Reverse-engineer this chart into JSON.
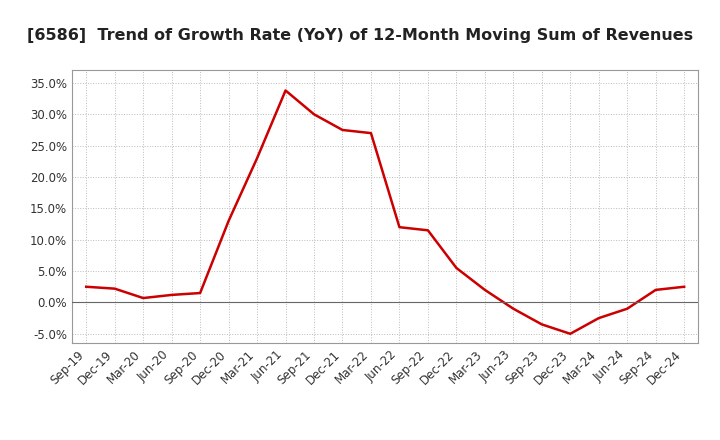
{
  "title": "[6586]  Trend of Growth Rate (YoY) of 12-Month Moving Sum of Revenues",
  "line_color": "#cc0000",
  "background_color": "#ffffff",
  "plot_bg_color": "#ffffff",
  "grid_color": "#bbbbbb",
  "ylim": [
    -0.065,
    0.37
  ],
  "yticks": [
    -0.05,
    0.0,
    0.05,
    0.1,
    0.15,
    0.2,
    0.25,
    0.3,
    0.35
  ],
  "labels": [
    "Sep-19",
    "Dec-19",
    "Mar-20",
    "Jun-20",
    "Sep-20",
    "Dec-20",
    "Mar-21",
    "Jun-21",
    "Sep-21",
    "Dec-21",
    "Mar-22",
    "Jun-22",
    "Sep-22",
    "Dec-22",
    "Mar-23",
    "Jun-23",
    "Sep-23",
    "Dec-23",
    "Mar-24",
    "Jun-24",
    "Sep-24",
    "Dec-24"
  ],
  "values": [
    0.025,
    0.022,
    0.007,
    0.012,
    0.015,
    0.13,
    0.23,
    0.338,
    0.3,
    0.275,
    0.27,
    0.12,
    0.115,
    0.055,
    0.02,
    -0.01,
    -0.035,
    -0.05,
    -0.025,
    -0.01,
    0.02,
    0.025
  ],
  "title_fontsize": 11.5,
  "tick_fontsize": 8.5,
  "line_width": 1.8
}
